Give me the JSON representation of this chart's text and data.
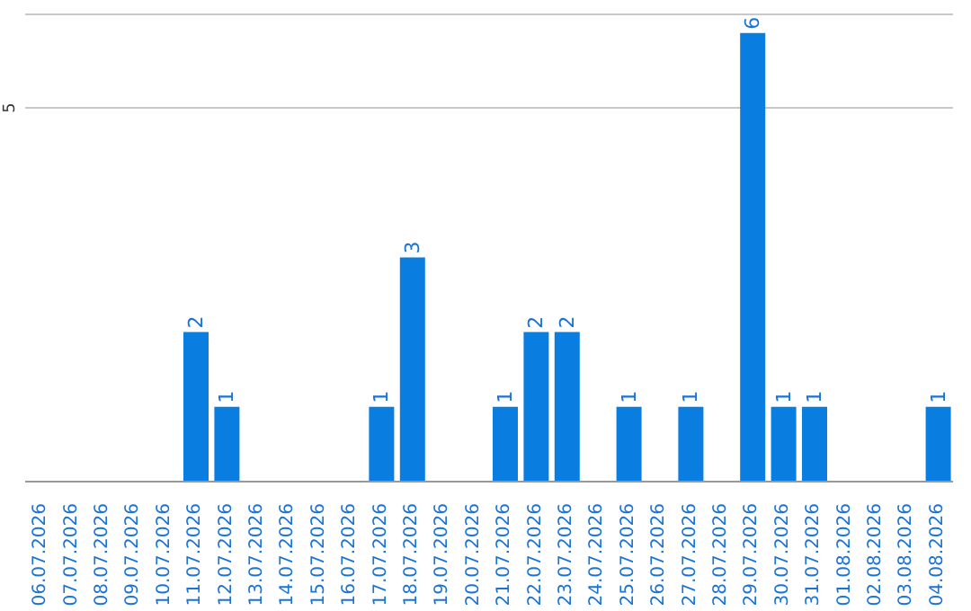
{
  "chart_data": {
    "type": "bar",
    "categories": [
      "06.07.2026",
      "07.07.2026",
      "08.07.2026",
      "09.07.2026",
      "10.07.2026",
      "11.07.2026",
      "12.07.2026",
      "13.07.2026",
      "14.07.2026",
      "15.07.2026",
      "16.07.2026",
      "17.07.2026",
      "18.07.2026",
      "19.07.2026",
      "20.07.2026",
      "21.07.2026",
      "22.07.2026",
      "23.07.2026",
      "24.07.2026",
      "25.07.2026",
      "26.07.2026",
      "27.07.2026",
      "28.07.2026",
      "29.07.2026",
      "30.07.2026",
      "31.07.2026",
      "01.08.2026",
      "02.08.2026",
      "03.08.2026",
      "04.08.2026"
    ],
    "values": [
      0,
      0,
      0,
      0,
      0,
      2,
      1,
      0,
      0,
      0,
      0,
      1,
      3,
      0,
      0,
      1,
      2,
      2,
      0,
      1,
      0,
      1,
      0,
      6,
      1,
      1,
      0,
      0,
      0,
      1
    ],
    "value_labels": [
      null,
      null,
      null,
      null,
      null,
      "2",
      "1",
      null,
      null,
      null,
      null,
      "1",
      "3",
      null,
      null,
      "1",
      "2",
      "2",
      null,
      "1",
      null,
      "1",
      null,
      "6",
      "1",
      "1",
      null,
      null,
      null,
      "1"
    ],
    "color": "#0a7ee0",
    "ylim": [
      0,
      6.25
    ],
    "yticks": [
      5
    ],
    "grid": "y"
  }
}
